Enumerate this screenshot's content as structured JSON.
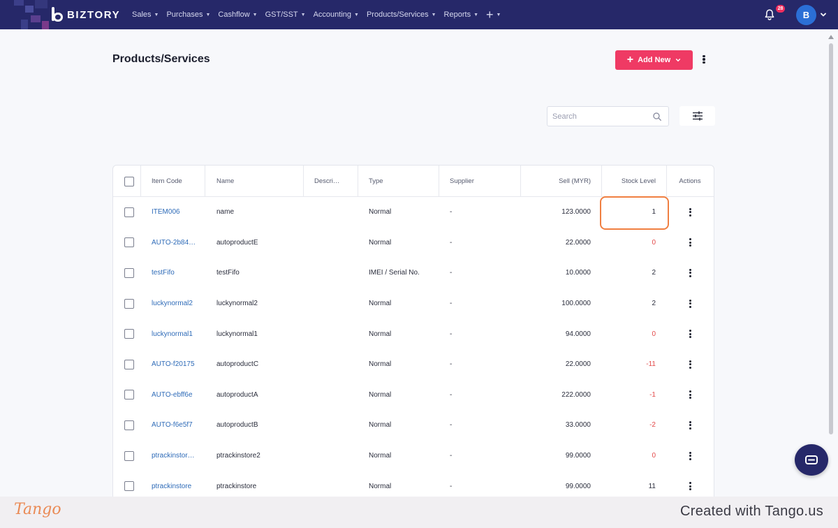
{
  "nav": {
    "brand": "BIZTORY",
    "menu": [
      {
        "label": "Sales"
      },
      {
        "label": "Purchases"
      },
      {
        "label": "Cashflow"
      },
      {
        "label": "GST/SST"
      },
      {
        "label": "Accounting"
      },
      {
        "label": "Products/Services"
      },
      {
        "label": "Reports"
      }
    ],
    "plus_label": "+",
    "notification_count": "28",
    "avatar_initial": "B",
    "icons": [
      "biztory-logo",
      "caret-down-icon",
      "plus-icon",
      "bell-icon",
      "chevron-down-icon"
    ]
  },
  "page": {
    "title": "Products/Services",
    "add_new_label": "Add New",
    "search_placeholder": "Search",
    "icons": [
      "plus-icon",
      "chevron-down-icon",
      "more-vertical-icon",
      "search-icon",
      "filter-sliders-icon"
    ]
  },
  "table": {
    "columns": [
      "Item Code",
      "Name",
      "Descri…",
      "Type",
      "Supplier",
      "Sell (MYR)",
      "Stock Level",
      "Actions"
    ],
    "rows": [
      {
        "code": "ITEM006",
        "name": "name",
        "description": "",
        "type": "Normal",
        "supplier": "-",
        "sell": "123.0000",
        "stock": "1",
        "negative": false
      },
      {
        "code": "AUTO-2b84…",
        "name": "autoproductE",
        "description": "",
        "type": "Normal",
        "supplier": "-",
        "sell": "22.0000",
        "stock": "0",
        "negative": true
      },
      {
        "code": "testFifo",
        "name": "testFifo",
        "description": "",
        "type": "IMEI / Serial No.",
        "supplier": "-",
        "sell": "10.0000",
        "stock": "2",
        "negative": false
      },
      {
        "code": "luckynormal2",
        "name": "luckynormal2",
        "description": "",
        "type": "Normal",
        "supplier": "-",
        "sell": "100.0000",
        "stock": "2",
        "negative": false
      },
      {
        "code": "luckynormal1",
        "name": "luckynormal1",
        "description": "",
        "type": "Normal",
        "supplier": "-",
        "sell": "94.0000",
        "stock": "0",
        "negative": true
      },
      {
        "code": "AUTO-f20175",
        "name": "autoproductC",
        "description": "",
        "type": "Normal",
        "supplier": "-",
        "sell": "22.0000",
        "stock": "-11",
        "negative": true
      },
      {
        "code": "AUTO-ebff6e",
        "name": "autoproductA",
        "description": "",
        "type": "Normal",
        "supplier": "-",
        "sell": "222.0000",
        "stock": "-1",
        "negative": true
      },
      {
        "code": "AUTO-f6e5f7",
        "name": "autoproductB",
        "description": "",
        "type": "Normal",
        "supplier": "-",
        "sell": "33.0000",
        "stock": "-2",
        "negative": true
      },
      {
        "code": "ptrackinstor…",
        "name": "ptrackinstore2",
        "description": "",
        "type": "Normal",
        "supplier": "-",
        "sell": "99.0000",
        "stock": "0",
        "negative": true
      },
      {
        "code": "ptrackinstore",
        "name": "ptrackinstore",
        "description": "",
        "type": "Normal",
        "supplier": "-",
        "sell": "99.0000",
        "stock": "11",
        "negative": false
      }
    ]
  },
  "footer": {
    "logo_text": "Tango",
    "credit": "Created with Tango.us"
  },
  "colors": {
    "navbar": "#262869",
    "accent": "#ef3a64",
    "link": "#2e6bb8",
    "negative": "#e34a4a",
    "highlight": "#f07f41",
    "avatar": "#2b6fd6"
  }
}
